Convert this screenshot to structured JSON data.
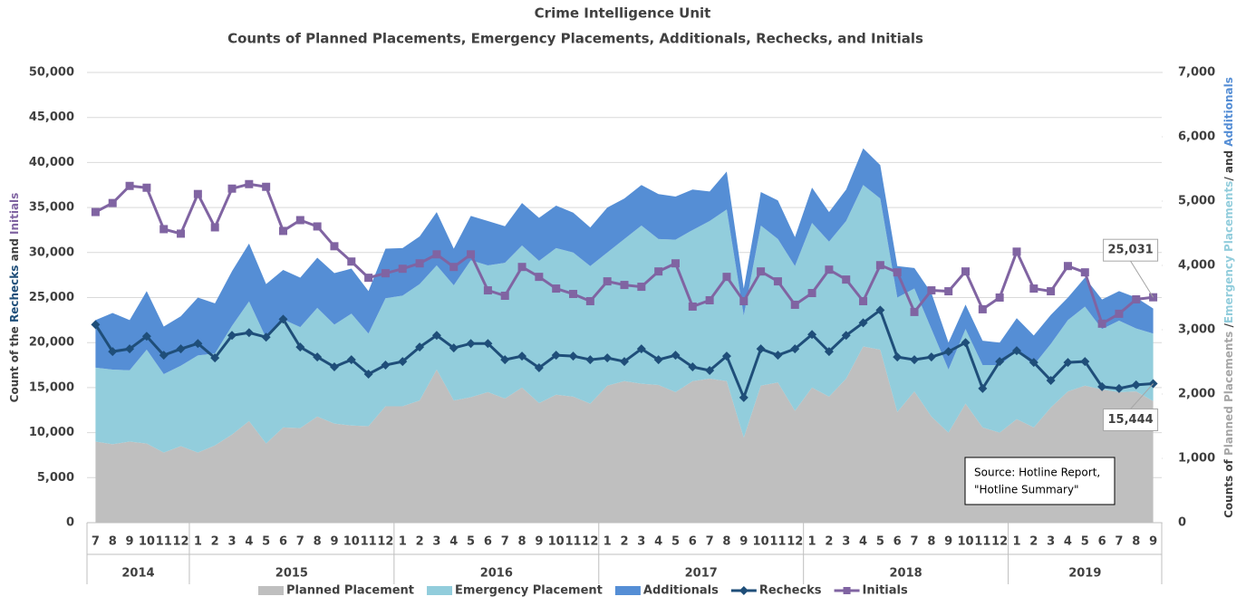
{
  "chart_data": {
    "type": "stacked-area-line",
    "title": "Crime Intelligence Unit",
    "subtitle": "Counts of Planned Placements, Emergency Placements, Additionals, Rechecks, and Initials",
    "y_label_parts": [
      {
        "text": "Count of the ",
        "color": "#404040"
      },
      {
        "text": "Rechecks",
        "color": "#1f4e79"
      },
      {
        "text": " and ",
        "color": "#404040"
      },
      {
        "text": "Initials",
        "color": "#8064a2"
      }
    ],
    "y2_label_parts": [
      {
        "text": "Counts of ",
        "color": "#404040"
      },
      {
        "text": "Planned Placements",
        "color": "#a6a6a6"
      },
      {
        "text": " /",
        "color": "#404040"
      },
      {
        "text": "Emergency Placements",
        "color": "#92cddc"
      },
      {
        "text": "/ and ",
        "color": "#404040"
      },
      {
        "text": "Additionals",
        "color": "#558ed5"
      }
    ],
    "categories": [
      "7",
      "8",
      "9",
      "10",
      "11",
      "12",
      "1",
      "2",
      "3",
      "4",
      "5",
      "6",
      "7",
      "8",
      "9",
      "10",
      "11",
      "12",
      "1",
      "2",
      "3",
      "4",
      "5",
      "6",
      "7",
      "8",
      "9",
      "10",
      "11",
      "12",
      "1",
      "2",
      "3",
      "4",
      "5",
      "6",
      "7",
      "8",
      "9",
      "10",
      "11",
      "12",
      "1",
      "2",
      "3",
      "4",
      "5",
      "6",
      "7",
      "8",
      "9",
      "10",
      "11",
      "12",
      "1",
      "2",
      "3",
      "4",
      "5",
      "6",
      "7",
      "8",
      "9"
    ],
    "x_groups": [
      {
        "label": "2014",
        "span": 6
      },
      {
        "label": "2015",
        "span": 12
      },
      {
        "label": "2016",
        "span": 12
      },
      {
        "label": "2017",
        "span": 12
      },
      {
        "label": "2018",
        "span": 12
      },
      {
        "label": "2019",
        "span": 9
      }
    ],
    "ylim": [
      0,
      50000
    ],
    "yticks": [
      {
        "value": 0,
        "label": "0"
      },
      {
        "value": 5000,
        "label": "5,000"
      },
      {
        "value": 10000,
        "label": "10,000"
      },
      {
        "value": 15000,
        "label": "15,000"
      },
      {
        "value": 20000,
        "label": "20,000"
      },
      {
        "value": 25000,
        "label": "25,000"
      },
      {
        "value": 30000,
        "label": "30,000"
      },
      {
        "value": 35000,
        "label": "35,000"
      },
      {
        "value": 40000,
        "label": "40,000"
      },
      {
        "value": 45000,
        "label": "45,000"
      },
      {
        "value": 50000,
        "label": "50,000"
      }
    ],
    "y2lim": [
      0,
      7000
    ],
    "y2ticks": [
      {
        "value": 0,
        "label": "0"
      },
      {
        "value": 1000,
        "label": "1,000"
      },
      {
        "value": 2000,
        "label": "2,000"
      },
      {
        "value": 3000,
        "label": "3,000"
      },
      {
        "value": 4000,
        "label": "4,000"
      },
      {
        "value": 5000,
        "label": "5,000"
      },
      {
        "value": 6000,
        "label": "6,000"
      },
      {
        "value": 7000,
        "label": "7,000"
      }
    ],
    "grid": true,
    "series": [
      {
        "name": "Planned Placement",
        "kind": "area",
        "axis": "y2",
        "color": "#bfbfbf",
        "values": [
          1260,
          1220,
          1260,
          1230,
          1090,
          1190,
          1090,
          1200,
          1370,
          1580,
          1230,
          1480,
          1470,
          1650,
          1540,
          1510,
          1500,
          1810,
          1810,
          1900,
          2380,
          1900,
          1950,
          2030,
          1930,
          2100,
          1860,
          1990,
          1960,
          1850,
          2130,
          2200,
          2160,
          2140,
          2030,
          2200,
          2240,
          2200,
          1320,
          2130,
          2180,
          1740,
          2100,
          1960,
          2240,
          2740,
          2690,
          1720,
          2040,
          1650,
          1400,
          1850,
          1480,
          1400,
          1610,
          1480,
          1790,
          2040,
          2130,
          2070,
          2030,
          2040,
          1890
        ]
      },
      {
        "name": "Emergency Placement",
        "kind": "area",
        "axis": "y2",
        "color": "#92cddc",
        "values": [
          1150,
          1160,
          1110,
          1460,
          1220,
          1250,
          1510,
          1430,
          1690,
          1860,
          1640,
          1680,
          1570,
          1690,
          1540,
          1740,
          1440,
          1680,
          1720,
          1810,
          1620,
          1790,
          2130,
          1970,
          2110,
          2210,
          2210,
          2280,
          2240,
          2140,
          2070,
          2210,
          2460,
          2270,
          2370,
          2350,
          2450,
          2670,
          1900,
          2490,
          2230,
          2250,
          2560,
          2410,
          2450,
          2510,
          2350,
          1780,
          1600,
          1360,
          980,
          1160,
          970,
          1050,
          1050,
          970,
          990,
          1110,
          1230,
          940,
          1110,
          980,
          1050
        ]
      },
      {
        "name": "Additionals",
        "kind": "area",
        "axis": "y2",
        "color": "#558ed5",
        "values": [
          740,
          880,
          780,
          910,
          740,
          770,
          900,
          780,
          850,
          900,
          840,
          770,
          770,
          780,
          800,
          700,
          660,
          770,
          740,
          740,
          830,
          570,
          690,
          690,
          570,
          660,
          670,
          660,
          620,
          600,
          700,
          630,
          630,
          700,
          670,
          630,
          460,
          590,
          420,
          520,
          600,
          450,
          550,
          460,
          490,
          570,
          520,
          490,
          320,
          560,
          420,
          380,
          380,
          350,
          520,
          460,
          450,
          350,
          450,
          460,
          460,
          480,
          390
        ]
      },
      {
        "name": "Rechecks",
        "kind": "line",
        "marker": "diamond",
        "color": "#1f4e79",
        "values": [
          22000,
          19000,
          19300,
          20700,
          18600,
          19300,
          19900,
          18300,
          20800,
          21100,
          20600,
          22600,
          19500,
          18400,
          17300,
          18100,
          16500,
          17500,
          17900,
          19500,
          20800,
          19400,
          19900,
          19900,
          18100,
          18500,
          17200,
          18600,
          18500,
          18100,
          18300,
          17900,
          19300,
          18100,
          18600,
          17300,
          16900,
          18500,
          13900,
          19300,
          18600,
          19300,
          20900,
          19000,
          20800,
          22200,
          23600,
          18400,
          18100,
          18400,
          19000,
          20000,
          14900,
          17900,
          19100,
          17800,
          15800,
          17800,
          17900,
          15100,
          14900,
          15300,
          15444
        ],
        "value_labels": [
          null,
          null,
          null,
          null,
          null,
          null,
          null,
          null,
          null,
          null,
          null,
          null,
          null,
          null,
          null,
          null,
          null,
          null,
          null,
          null,
          null,
          null,
          null,
          null,
          null,
          null,
          null,
          null,
          null,
          null,
          null,
          null,
          null,
          null,
          null,
          null,
          null,
          null,
          null,
          null,
          null,
          null,
          null,
          null,
          null,
          null,
          null,
          null,
          null,
          null,
          null,
          null,
          null,
          null,
          null,
          null,
          null,
          null,
          null,
          null,
          null,
          null,
          "15,444"
        ]
      },
      {
        "name": "Initials",
        "kind": "line",
        "marker": "square",
        "color": "#8064a2",
        "values": [
          34500,
          35500,
          37400,
          37200,
          32600,
          32100,
          36500,
          32800,
          37100,
          37600,
          37300,
          32400,
          33600,
          32900,
          30700,
          29000,
          27200,
          27700,
          28200,
          28800,
          29800,
          28400,
          29800,
          25800,
          25200,
          28400,
          27300,
          26000,
          25400,
          24600,
          26800,
          26400,
          26200,
          27900,
          28800,
          24000,
          24700,
          27300,
          24600,
          27900,
          26800,
          24200,
          25500,
          28100,
          27000,
          24600,
          28600,
          27800,
          23400,
          25800,
          25700,
          27900,
          23700,
          25000,
          30100,
          26000,
          25700,
          28500,
          27800,
          22100,
          23200,
          24800,
          25031
        ],
        "value_labels": [
          null,
          null,
          null,
          null,
          null,
          null,
          null,
          null,
          null,
          null,
          null,
          null,
          null,
          null,
          null,
          null,
          null,
          null,
          null,
          null,
          null,
          null,
          null,
          null,
          null,
          null,
          null,
          null,
          null,
          null,
          null,
          null,
          null,
          null,
          null,
          null,
          null,
          null,
          null,
          null,
          null,
          null,
          null,
          null,
          null,
          null,
          null,
          null,
          null,
          null,
          null,
          null,
          null,
          null,
          null,
          null,
          null,
          null,
          null,
          null,
          null,
          null,
          "25,031"
        ]
      }
    ],
    "annotations": [
      "Source: Hotline Report,",
      "\"Hotline Summary\""
    ]
  }
}
